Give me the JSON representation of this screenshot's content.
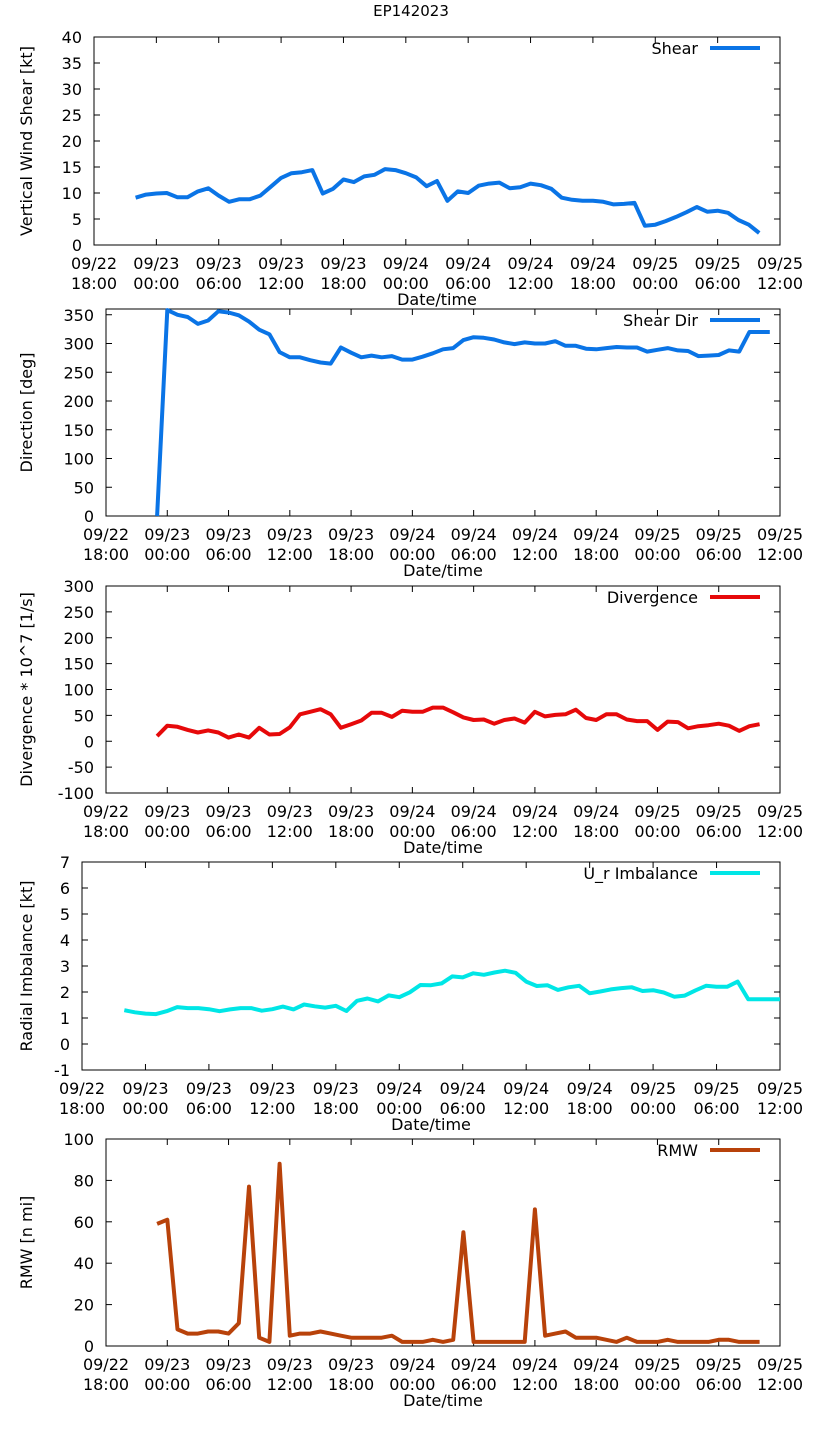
{
  "title": "EP142023",
  "x_tick_labels": [
    [
      "09/22",
      "18:00"
    ],
    [
      "09/23",
      "00:00"
    ],
    [
      "09/23",
      "06:00"
    ],
    [
      "09/23",
      "12:00"
    ],
    [
      "09/23",
      "18:00"
    ],
    [
      "09/24",
      "00:00"
    ],
    [
      "09/24",
      "06:00"
    ],
    [
      "09/24",
      "12:00"
    ],
    [
      "09/24",
      "18:00"
    ],
    [
      "09/25",
      "00:00"
    ],
    [
      "09/25",
      "06:00"
    ],
    [
      "09/25",
      "12:00"
    ]
  ],
  "chart_data": [
    {
      "type": "line",
      "xlabel": "Date/time",
      "ylabel": "Vertical Wind Shear [kt]",
      "xlim_hours": [
        0,
        66
      ],
      "ylim": [
        0,
        40
      ],
      "yticks": [
        0,
        5,
        10,
        15,
        20,
        25,
        30,
        35,
        40
      ],
      "series": [
        {
          "name": "Shear",
          "color": "#0a74e6",
          "x": [
            4,
            5,
            6,
            7,
            8,
            9,
            10,
            11,
            12,
            13,
            14,
            15,
            16,
            17,
            18,
            19,
            20,
            21,
            22,
            23,
            24,
            25,
            26,
            27,
            28,
            29,
            30,
            31,
            32,
            33,
            34,
            35,
            36,
            37,
            38,
            39,
            40,
            41,
            42,
            43,
            44,
            45,
            46,
            47,
            48,
            49,
            50,
            51,
            52,
            53,
            54,
            55,
            56,
            57,
            58,
            59,
            60,
            61,
            62,
            63,
            64
          ],
          "y": [
            9.1,
            9.7,
            9.9,
            10.0,
            9.2,
            9.2,
            10.3,
            10.9,
            9.5,
            8.3,
            8.8,
            8.8,
            9.5,
            11.2,
            12.9,
            13.8,
            14.0,
            14.4,
            9.9,
            10.8,
            12.6,
            12.1,
            13.2,
            13.5,
            14.6,
            14.4,
            13.8,
            13.0,
            11.3,
            12.3,
            8.5,
            10.3,
            10.0,
            11.4,
            11.8,
            12.0,
            10.9,
            11.1,
            11.8,
            11.5,
            10.8,
            9.1,
            8.7,
            8.5,
            8.5,
            8.3,
            7.8,
            7.9,
            8.1,
            3.7,
            3.9,
            4.6,
            5.4,
            6.3,
            7.3,
            6.4,
            6.6,
            6.2,
            4.8,
            3.9,
            2.3
          ]
        }
      ]
    },
    {
      "type": "line",
      "xlabel": "Date/time",
      "ylabel": "Direction [deg]",
      "xlim_hours": [
        0,
        66
      ],
      "ylim": [
        0,
        360
      ],
      "yticks": [
        0,
        50,
        100,
        150,
        200,
        250,
        300,
        350
      ],
      "series": [
        {
          "name": "Shear Dir",
          "color": "#0a74e6",
          "x": [
            5,
            6,
            7,
            8,
            9,
            10,
            11,
            12,
            13,
            14,
            15,
            16,
            17,
            18,
            19,
            20,
            21,
            22,
            23,
            24,
            25,
            26,
            27,
            28,
            29,
            30,
            31,
            32,
            33,
            34,
            35,
            36,
            37,
            38,
            39,
            40,
            41,
            42,
            43,
            44,
            45,
            46,
            47,
            48,
            49,
            50,
            51,
            52,
            53,
            54,
            55,
            56,
            57,
            58,
            59,
            60,
            61,
            62,
            63,
            64,
            65
          ],
          "y": [
            0,
            358,
            350,
            346,
            334,
            340,
            356,
            354,
            349,
            338,
            324,
            316,
            285,
            276,
            276,
            271,
            267,
            265,
            293,
            284,
            276,
            279,
            276,
            278,
            272,
            272,
            277,
            283,
            290,
            292,
            306,
            311,
            310,
            307,
            302,
            299,
            302,
            300,
            300,
            304,
            296,
            296,
            291,
            290,
            292,
            294,
            293,
            293,
            286,
            289,
            292,
            288,
            287,
            278,
            279,
            280,
            288,
            286,
            320,
            320,
            320
          ]
        }
      ]
    },
    {
      "type": "line",
      "xlabel": "Date/time",
      "ylabel": "Divergence * 10^7 [1/s]",
      "xlim_hours": [
        0,
        66
      ],
      "ylim": [
        -100,
        300
      ],
      "yticks": [
        -100,
        -50,
        0,
        50,
        100,
        150,
        200,
        250,
        300
      ],
      "series": [
        {
          "name": "Divergence",
          "color": "#e6090a",
          "x": [
            5,
            6,
            7,
            8,
            9,
            10,
            11,
            12,
            13,
            14,
            15,
            16,
            17,
            18,
            19,
            20,
            21,
            22,
            23,
            24,
            25,
            26,
            27,
            28,
            29,
            30,
            31,
            32,
            33,
            34,
            35,
            36,
            37,
            38,
            39,
            40,
            41,
            42,
            43,
            44,
            45,
            46,
            47,
            48,
            49,
            50,
            51,
            52,
            53,
            54,
            55,
            56,
            57,
            58,
            59,
            60,
            61,
            62,
            63,
            64
          ],
          "y": [
            10,
            30,
            28,
            22,
            17,
            21,
            17,
            7,
            13,
            7,
            26,
            13,
            14,
            27,
            52,
            57,
            62,
            52,
            26,
            33,
            40,
            55,
            55,
            47,
            59,
            57,
            57,
            65,
            65,
            56,
            46,
            41,
            42,
            34,
            41,
            44,
            36,
            57,
            48,
            51,
            52,
            61,
            45,
            41,
            52,
            52,
            42,
            39,
            39,
            22,
            38,
            37,
            25,
            29,
            31,
            34,
            30,
            20,
            29,
            33
          ]
        }
      ]
    },
    {
      "type": "line",
      "xlabel": "Date/time",
      "ylabel": "Radial Imbalance [kt]",
      "xlim_hours": [
        0,
        66
      ],
      "ylim": [
        -1,
        7
      ],
      "yticks": [
        -1,
        0,
        1,
        2,
        3,
        4,
        5,
        6,
        7
      ],
      "series": [
        {
          "name": "U_r Imbalance",
          "color": "#00e6e6",
          "x": [
            4,
            5,
            6,
            7,
            8,
            9,
            10,
            11,
            12,
            13,
            14,
            15,
            16,
            17,
            18,
            19,
            20,
            21,
            22,
            23,
            24,
            25,
            26,
            27,
            28,
            29,
            30,
            31,
            32,
            33,
            34,
            35,
            36,
            37,
            38,
            39,
            40,
            41,
            42,
            43,
            44,
            45,
            46,
            47,
            48,
            49,
            50,
            51,
            52,
            53,
            54,
            55,
            56,
            57,
            58,
            59,
            60,
            61,
            62,
            63,
            64,
            65,
            66
          ],
          "y": [
            1.3,
            1.22,
            1.17,
            1.15,
            1.26,
            1.42,
            1.38,
            1.38,
            1.34,
            1.26,
            1.33,
            1.38,
            1.38,
            1.28,
            1.34,
            1.44,
            1.33,
            1.52,
            1.45,
            1.4,
            1.47,
            1.27,
            1.66,
            1.75,
            1.64,
            1.87,
            1.8,
            1.99,
            2.27,
            2.26,
            2.33,
            2.6,
            2.56,
            2.72,
            2.66,
            2.75,
            2.82,
            2.74,
            2.4,
            2.23,
            2.26,
            2.08,
            2.18,
            2.24,
            1.95,
            2.02,
            2.1,
            2.15,
            2.18,
            2.04,
            2.07,
            1.98,
            1.82,
            1.86,
            2.06,
            2.24,
            2.2,
            2.2,
            2.4,
            1.72,
            1.72,
            1.72,
            1.72
          ]
        }
      ]
    },
    {
      "type": "line",
      "xlabel": "Date/time",
      "ylabel": "RMW [n mi]",
      "xlim_hours": [
        0,
        66
      ],
      "ylim": [
        0,
        100
      ],
      "yticks": [
        0,
        20,
        40,
        60,
        80,
        100
      ],
      "series": [
        {
          "name": "RMW",
          "color": "#b8420a",
          "x": [
            5,
            6,
            7,
            8,
            9,
            10,
            11,
            12,
            13,
            14,
            15,
            16,
            17,
            18,
            19,
            20,
            21,
            22,
            23,
            24,
            25,
            26,
            27,
            28,
            29,
            30,
            31,
            32,
            33,
            34,
            35,
            36,
            37,
            38,
            39,
            40,
            41,
            42,
            43,
            44,
            45,
            46,
            47,
            48,
            49,
            50,
            51,
            52,
            53,
            54,
            55,
            56,
            57,
            58,
            59,
            60,
            61,
            62,
            63,
            64
          ],
          "y": [
            59,
            61,
            8,
            6,
            6,
            7,
            7,
            6,
            11,
            77,
            4,
            2,
            88,
            5,
            6,
            6,
            7,
            6,
            5,
            4,
            4,
            4,
            4,
            5,
            2,
            2,
            2,
            3,
            2,
            3,
            55,
            2,
            2,
            2,
            2,
            2,
            2,
            66,
            5,
            6,
            7,
            4,
            4,
            4,
            3,
            2,
            4,
            2,
            2,
            2,
            3,
            2,
            2,
            2,
            2,
            3,
            3,
            2,
            2,
            2
          ]
        }
      ]
    }
  ]
}
